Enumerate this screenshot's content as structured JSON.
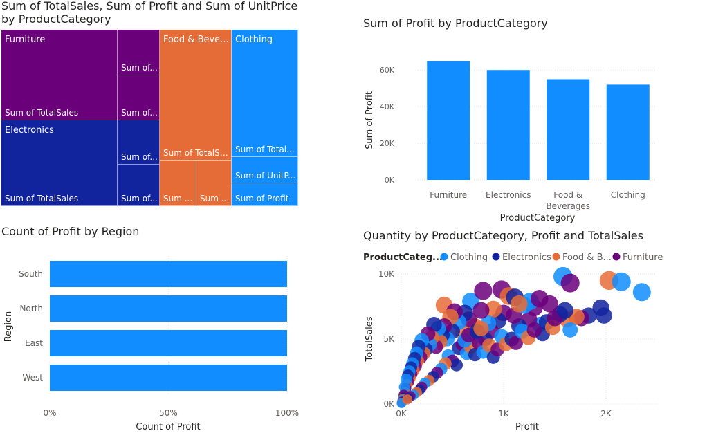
{
  "colors": {
    "furniture": "#6B007B",
    "electronics": "#12239E",
    "food": "#E66C37",
    "clothing": "#118DFF",
    "grid": "#E5E5E5",
    "axis_text": "#605E5C"
  },
  "treemap": {
    "title_line1": "Sum of TotalSales, Sum of Profit and Sum of UnitPrice",
    "title_line2": "by ProductCategory",
    "groups": [
      {
        "category": "Furniture",
        "cells": [
          "Sum of TotalSales",
          "Sum of...",
          "Sum of..."
        ]
      },
      {
        "category": "Electronics",
        "cells": [
          "Sum of TotalSales",
          "Sum of...",
          "Sum of..."
        ]
      },
      {
        "category": "Food & Beve...",
        "cells": [
          "Sum of TotalSa...",
          "Sum ...",
          "Sum ..."
        ]
      },
      {
        "category": "Clothing",
        "cells": [
          "Sum of Total...",
          "Sum of UnitP...",
          "Sum of Profit"
        ]
      }
    ]
  },
  "chart_data": [
    {
      "type": "bar",
      "title": "Sum of Profit by ProductCategory",
      "xlabel": "ProductCategory",
      "ylabel": "Sum of Profit",
      "categories": [
        "Furniture",
        "Electronics",
        "Food & Beverages",
        "Clothing"
      ],
      "category_lines": [
        [
          "Furniture"
        ],
        [
          "Electronics"
        ],
        [
          "Food &",
          "Beverages"
        ],
        [
          "Clothing"
        ]
      ],
      "values": [
        65000,
        60000,
        55000,
        52000
      ],
      "ylim": [
        0,
        60000
      ],
      "yticks": [
        0,
        20000,
        40000,
        60000
      ],
      "ytick_labels": [
        "0K",
        "20K",
        "40K",
        "60K"
      ],
      "grid": true
    },
    {
      "type": "bar",
      "orientation": "horizontal",
      "title": "Count of Profit by Region",
      "xlabel": "Count of Profit",
      "ylabel": "Region",
      "categories": [
        "South",
        "North",
        "East",
        "West"
      ],
      "values": [
        100,
        100,
        100,
        100
      ],
      "xlim": [
        0,
        100
      ],
      "xticks": [
        0,
        50,
        100
      ],
      "xtick_labels": [
        "0%",
        "50%",
        "100%"
      ],
      "grid": true
    },
    {
      "type": "scatter",
      "title": "Quantity by ProductCategory, Profit and TotalSales",
      "xlabel": "Profit",
      "ylabel": "TotalSales",
      "legend_title": "ProductCateg...",
      "legend_entries": [
        "Clothing",
        "Electronics",
        "Food & B...",
        "Furniture"
      ],
      "xlim": [
        0,
        2500
      ],
      "ylim": [
        0,
        10000
      ],
      "xticks": [
        0,
        1000,
        2000
      ],
      "xtick_labels": [
        "0K",
        "1K",
        "2K"
      ],
      "yticks": [
        0,
        5000,
        10000
      ],
      "ytick_labels": [
        "0K",
        "5K",
        "10K"
      ],
      "grid": true,
      "points": [
        {
          "c": 2,
          "x": 420,
          "y": 7600
        },
        {
          "c": 0,
          "x": 680,
          "y": 7900
        },
        {
          "c": 3,
          "x": 800,
          "y": 8700
        },
        {
          "c": 3,
          "x": 980,
          "y": 8800
        },
        {
          "c": 0,
          "x": 1580,
          "y": 9800
        },
        {
          "c": 3,
          "x": 1650,
          "y": 9300
        },
        {
          "c": 2,
          "x": 2030,
          "y": 9500
        },
        {
          "c": 0,
          "x": 2150,
          "y": 9400
        },
        {
          "c": 0,
          "x": 2350,
          "y": 8600
        },
        {
          "c": 1,
          "x": 1950,
          "y": 7400
        },
        {
          "c": 1,
          "x": 1980,
          "y": 6800
        },
        {
          "c": 1,
          "x": 1830,
          "y": 6800
        },
        {
          "c": 3,
          "x": 1760,
          "y": 6600
        },
        {
          "c": 2,
          "x": 1710,
          "y": 6700
        },
        {
          "c": 2,
          "x": 1620,
          "y": 6500
        },
        {
          "c": 0,
          "x": 1650,
          "y": 5700
        },
        {
          "c": 1,
          "x": 1550,
          "y": 6900
        },
        {
          "c": 3,
          "x": 1450,
          "y": 7700
        },
        {
          "c": 3,
          "x": 1300,
          "y": 7400
        },
        {
          "c": 0,
          "x": 1350,
          "y": 6100
        },
        {
          "c": 1,
          "x": 1380,
          "y": 5400
        },
        {
          "c": 3,
          "x": 1250,
          "y": 6500
        },
        {
          "c": 1,
          "x": 1150,
          "y": 6000
        },
        {
          "c": 2,
          "x": 1050,
          "y": 8300
        },
        {
          "c": 3,
          "x": 1100,
          "y": 6800
        },
        {
          "c": 0,
          "x": 1200,
          "y": 7600
        },
        {
          "c": 1,
          "x": 1110,
          "y": 8200
        },
        {
          "c": 3,
          "x": 1000,
          "y": 7000
        },
        {
          "c": 1,
          "x": 950,
          "y": 6400
        },
        {
          "c": 2,
          "x": 900,
          "y": 7300
        },
        {
          "c": 3,
          "x": 880,
          "y": 5600
        },
        {
          "c": 0,
          "x": 850,
          "y": 6200
        },
        {
          "c": 1,
          "x": 820,
          "y": 5000
        },
        {
          "c": 3,
          "x": 780,
          "y": 7200
        },
        {
          "c": 2,
          "x": 720,
          "y": 6000
        },
        {
          "c": 0,
          "x": 700,
          "y": 5100
        },
        {
          "c": 3,
          "x": 660,
          "y": 6500
        },
        {
          "c": 1,
          "x": 620,
          "y": 7000
        },
        {
          "c": 2,
          "x": 600,
          "y": 5500
        },
        {
          "c": 0,
          "x": 560,
          "y": 6300
        },
        {
          "c": 3,
          "x": 520,
          "y": 7100
        },
        {
          "c": 1,
          "x": 500,
          "y": 5600
        },
        {
          "c": 2,
          "x": 480,
          "y": 6700
        },
        {
          "c": 0,
          "x": 450,
          "y": 5000
        },
        {
          "c": 3,
          "x": 420,
          "y": 6000
        },
        {
          "c": 1,
          "x": 400,
          "y": 5300
        },
        {
          "c": 2,
          "x": 380,
          "y": 4800
        },
        {
          "c": 0,
          "x": 360,
          "y": 5800
        },
        {
          "c": 3,
          "x": 340,
          "y": 4400
        },
        {
          "c": 1,
          "x": 320,
          "y": 6100
        },
        {
          "c": 2,
          "x": 300,
          "y": 5100
        },
        {
          "c": 0,
          "x": 280,
          "y": 4600
        },
        {
          "c": 3,
          "x": 260,
          "y": 5400
        },
        {
          "c": 1,
          "x": 240,
          "y": 4200
        },
        {
          "c": 2,
          "x": 220,
          "y": 3900
        },
        {
          "c": 0,
          "x": 200,
          "y": 4900
        },
        {
          "c": 3,
          "x": 190,
          "y": 3600
        },
        {
          "c": 1,
          "x": 170,
          "y": 4400
        },
        {
          "c": 2,
          "x": 160,
          "y": 3300
        },
        {
          "c": 0,
          "x": 150,
          "y": 3900
        },
        {
          "c": 3,
          "x": 140,
          "y": 2900
        },
        {
          "c": 1,
          "x": 130,
          "y": 3500
        },
        {
          "c": 2,
          "x": 120,
          "y": 2600
        },
        {
          "c": 0,
          "x": 110,
          "y": 3100
        },
        {
          "c": 3,
          "x": 100,
          "y": 2300
        },
        {
          "c": 1,
          "x": 95,
          "y": 2800
        },
        {
          "c": 2,
          "x": 85,
          "y": 2000
        },
        {
          "c": 0,
          "x": 80,
          "y": 2500
        },
        {
          "c": 3,
          "x": 70,
          "y": 1700
        },
        {
          "c": 1,
          "x": 65,
          "y": 2200
        },
        {
          "c": 2,
          "x": 55,
          "y": 1500
        },
        {
          "c": 0,
          "x": 50,
          "y": 1900
        },
        {
          "c": 3,
          "x": 45,
          "y": 1200
        },
        {
          "c": 1,
          "x": 40,
          "y": 1000
        },
        {
          "c": 2,
          "x": 35,
          "y": 900
        },
        {
          "c": 0,
          "x": 30,
          "y": 1300
        },
        {
          "c": 3,
          "x": 25,
          "y": 700
        },
        {
          "c": 1,
          "x": 20,
          "y": 500
        },
        {
          "c": 2,
          "x": 15,
          "y": 400
        },
        {
          "c": 0,
          "x": 12,
          "y": 300
        },
        {
          "c": 3,
          "x": 10,
          "y": 200
        },
        {
          "c": 1,
          "x": 8,
          "y": 150
        },
        {
          "c": 2,
          "x": 5,
          "y": 100
        },
        {
          "c": 0,
          "x": 3,
          "y": 60
        },
        {
          "c": 1,
          "x": 560,
          "y": 4300
        },
        {
          "c": 3,
          "x": 600,
          "y": 4600
        },
        {
          "c": 0,
          "x": 640,
          "y": 3900
        },
        {
          "c": 2,
          "x": 680,
          "y": 4400
        },
        {
          "c": 1,
          "x": 720,
          "y": 3800
        },
        {
          "c": 3,
          "x": 760,
          "y": 4700
        },
        {
          "c": 0,
          "x": 800,
          "y": 4000
        },
        {
          "c": 2,
          "x": 860,
          "y": 4500
        },
        {
          "c": 1,
          "x": 900,
          "y": 3600
        },
        {
          "c": 3,
          "x": 940,
          "y": 4200
        },
        {
          "c": 0,
          "x": 980,
          "y": 5200
        },
        {
          "c": 2,
          "x": 1020,
          "y": 4600
        },
        {
          "c": 1,
          "x": 1080,
          "y": 5000
        },
        {
          "c": 3,
          "x": 1120,
          "y": 4700
        },
        {
          "c": 0,
          "x": 1180,
          "y": 5600
        },
        {
          "c": 2,
          "x": 1240,
          "y": 5100
        },
        {
          "c": 3,
          "x": 1300,
          "y": 5700
        },
        {
          "c": 1,
          "x": 1420,
          "y": 6300
        },
        {
          "c": 2,
          "x": 1480,
          "y": 5900
        },
        {
          "c": 3,
          "x": 1500,
          "y": 6600
        },
        {
          "c": 0,
          "x": 1260,
          "y": 7900
        },
        {
          "c": 1,
          "x": 1600,
          "y": 7200
        },
        {
          "c": 3,
          "x": 1350,
          "y": 8100
        },
        {
          "c": 2,
          "x": 1150,
          "y": 7700
        },
        {
          "c": 0,
          "x": 460,
          "y": 3700
        },
        {
          "c": 3,
          "x": 500,
          "y": 3300
        },
        {
          "c": 1,
          "x": 540,
          "y": 3000
        },
        {
          "c": 2,
          "x": 430,
          "y": 3100
        },
        {
          "c": 0,
          "x": 390,
          "y": 2700
        },
        {
          "c": 3,
          "x": 350,
          "y": 2400
        },
        {
          "c": 1,
          "x": 310,
          "y": 2100
        },
        {
          "c": 2,
          "x": 270,
          "y": 1800
        },
        {
          "c": 0,
          "x": 230,
          "y": 1600
        },
        {
          "c": 3,
          "x": 200,
          "y": 1300
        },
        {
          "c": 1,
          "x": 180,
          "y": 1100
        },
        {
          "c": 2,
          "x": 150,
          "y": 900
        },
        {
          "c": 0,
          "x": 120,
          "y": 700
        },
        {
          "c": 3,
          "x": 90,
          "y": 600
        },
        {
          "c": 1,
          "x": 70,
          "y": 450
        },
        {
          "c": 2,
          "x": 60,
          "y": 350
        },
        {
          "c": 0,
          "x": 620,
          "y": 4900
        },
        {
          "c": 3,
          "x": 660,
          "y": 5300
        },
        {
          "c": 1,
          "x": 740,
          "y": 5600
        },
        {
          "c": 2,
          "x": 780,
          "y": 5800
        }
      ]
    }
  ]
}
